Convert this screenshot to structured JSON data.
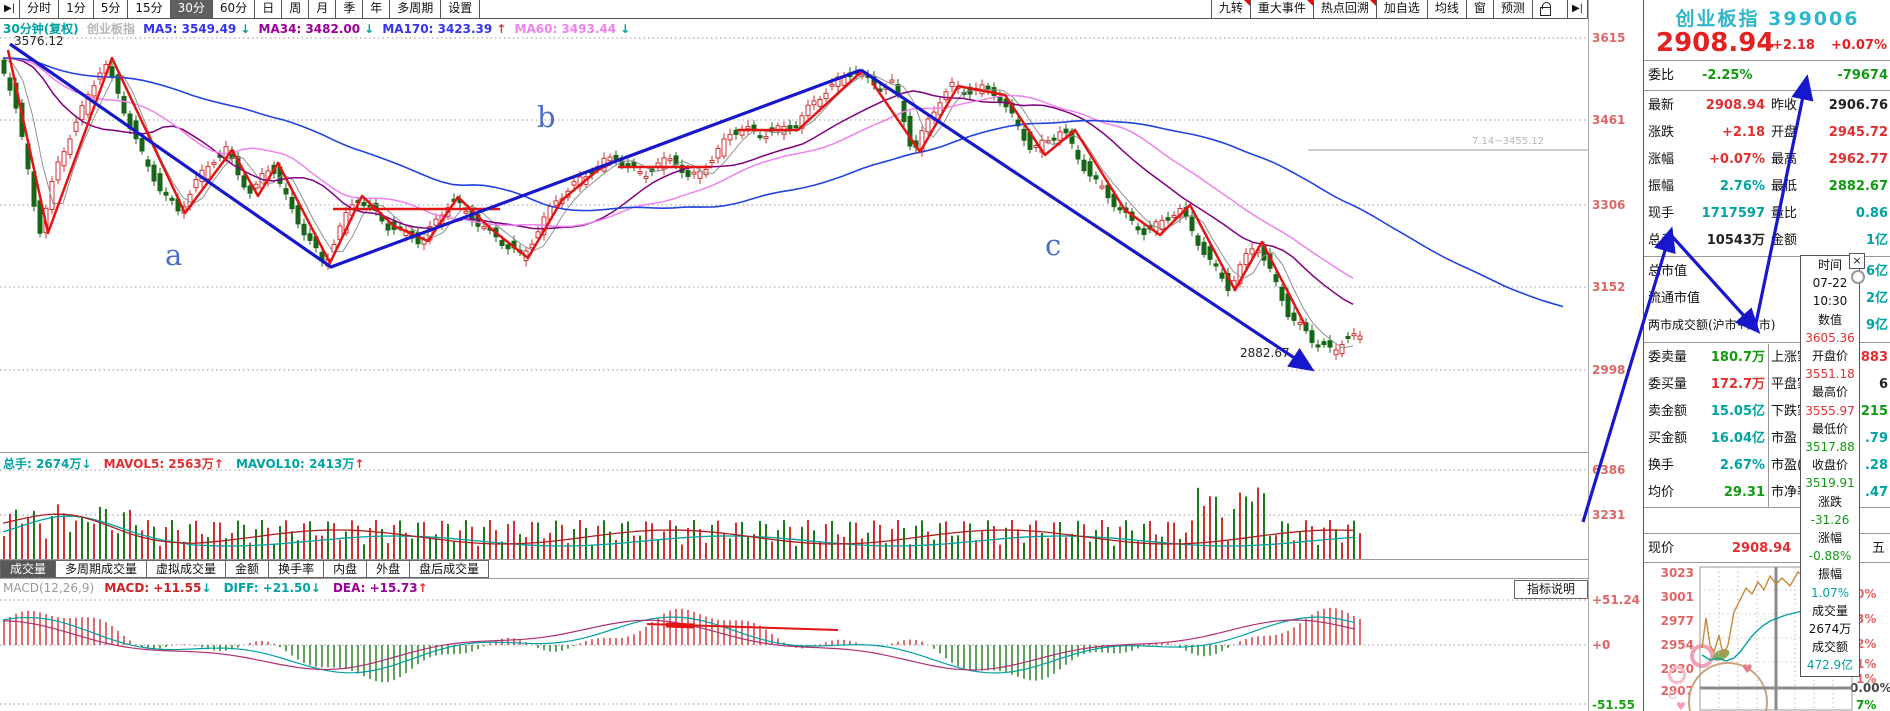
{
  "toolbar": {
    "collapse_left": "▶|",
    "left": [
      "分时",
      "1分",
      "5分",
      "15分",
      "30分",
      "60分",
      "日",
      "周",
      "月",
      "季",
      "年",
      "多周期",
      "设置"
    ],
    "right": [
      "九转",
      "重大事件",
      "热点回溯",
      "加自选",
      "均线",
      "窗",
      "预测"
    ],
    "collapse_right": "▶|"
  },
  "chart_header": {
    "period": "30分钟(复权)",
    "symbol": "创业板指",
    "ma5": "MA5: 3549.49",
    "ma5_arrow": "↓",
    "ma34": "MA34: 3482.00",
    "ma34_arrow": "↓",
    "ma170": "MA170: 3423.39",
    "ma170_arrow": "↑",
    "ma60": "MA60: 3493.44",
    "ma60_arrow": "↓"
  },
  "main_chart": {
    "high_label": "3576.12",
    "low_label": "2882.67",
    "wave_a": "a",
    "wave_b": "b",
    "wave_c": "c",
    "gann_label": "7.14~3455.12",
    "axis": [
      "3615",
      "3461",
      "3306",
      "3152",
      "2998"
    ]
  },
  "volume_pane": {
    "zongshou": "总手: 2674万",
    "zongshou_arrow": "↓",
    "mavol5": "MAVOL5: 2563万",
    "mavol5_arrow": "↑",
    "mavol10": "MAVOL10: 2413万",
    "mavol10_arrow": "↑",
    "axis": [
      "6386",
      "3231"
    ]
  },
  "tabs": [
    "成交量",
    "多周期成交量",
    "虚拟成交量",
    "金额",
    "换手率",
    "内盘",
    "外盘",
    "盘后成交量"
  ],
  "macd_pane": {
    "param": "MACD(12,26,9)",
    "macd": "MACD: +11.55",
    "macd_arrow": "↓",
    "diff": "DIFF: +21.50",
    "diff_arrow": "↓",
    "dea": "DEA: +15.73",
    "dea_arrow": "↑",
    "axis_top": "+51.24",
    "axis_zero": "+0",
    "axis_bottom": "-51.55",
    "help_button": "指标说明"
  },
  "panel": {
    "title": "创业板指 399006",
    "price": "2908.94",
    "change": "+2.18",
    "change_pct": "+0.07%",
    "weibi_label": "委比",
    "weibi": "-2.25%",
    "weicha": "-79674",
    "zuixin_l": "最新",
    "zuixin": "2908.94",
    "zuoshou_l": "昨收",
    "zuoshou": "2906.76",
    "zhangdie_l": "涨跌",
    "zhangdie": "+2.18",
    "kaipan_l": "开盘",
    "kaipan": "2945.72",
    "zhangfu_l": "涨幅",
    "zhangfu": "+0.07%",
    "zuigao_l": "最高",
    "zuigao": "2962.77",
    "zhenfu_l": "振幅",
    "zhenfu": "2.76%",
    "zuidi_l": "最低",
    "zuidi": "2882.67",
    "xianshou_l": "现手",
    "xianshou": "1717597",
    "liangbi_l": "量比",
    "liangbi": "0.86",
    "zongshou_l": "总手",
    "zongshou": "10543万",
    "jine_l": "金额",
    "jine": "1亿",
    "zongshizhi_l": "总市值",
    "zongshizhi": "6亿",
    "liutong_l": "流通市值",
    "liutong": "2亿",
    "liangshi_l": "两市成交额(沪市+深市)",
    "liangshi": "9亿",
    "weimai_l": "委卖量",
    "weimai": "180.7万",
    "shangzhang_l": "上涨家",
    "shangzhang": "883",
    "weimai2_l": "委买量",
    "weimai2": "172.7万",
    "pingpan_l": "平盘家",
    "pingpan": "6",
    "maijine_l": "卖金额",
    "maijine": "15.05亿",
    "xiadie_l": "下跌家",
    "xiadie": "215",
    "maijine2_l": "买金额",
    "maijine2": "16.04亿",
    "shiying_l": "市盈",
    "shiying": ".79",
    "huanshou_l": "换手",
    "huanshou": "2.67%",
    "shiyingd_l": "市盈(动",
    "shiyingd": ".28",
    "junjia_l": "均价",
    "junjia": "29.31",
    "shijing_l": "市净率",
    "shijing": ".47",
    "xianjia_l": "现价",
    "xianjia": "2908.94",
    "week_fragment": "五"
  },
  "tooltip": {
    "close": "×",
    "title": "时间",
    "date": "07-22",
    "time": "10:30",
    "shuzhi_l": "数值",
    "shuzhi": "3605.36",
    "kai_l": "开盘价",
    "kai": "3551.18",
    "gao_l": "最高价",
    "gao": "3555.97",
    "di_l": "最低价",
    "di": "3517.88",
    "shou_l": "收盘价",
    "shou": "3519.91",
    "zd_l": "涨跌",
    "zd": "-31.26",
    "zf_l": "涨幅",
    "zf": "-0.88%",
    "zhf_l": "振幅",
    "zhf": "1.07%",
    "cjl_l": "成交量",
    "cjl": "2674万",
    "cje_l": "成交额",
    "cje": "472.9亿"
  },
  "mini_chart": {
    "axis_left": [
      "3023",
      "3001",
      "2977",
      "2954",
      "2930",
      "2907"
    ],
    "axis_right": [
      "0%",
      "3%",
      "2%",
      "1%",
      "1%"
    ],
    "zero_label": "0.00%",
    "below_label": "7%"
  }
}
